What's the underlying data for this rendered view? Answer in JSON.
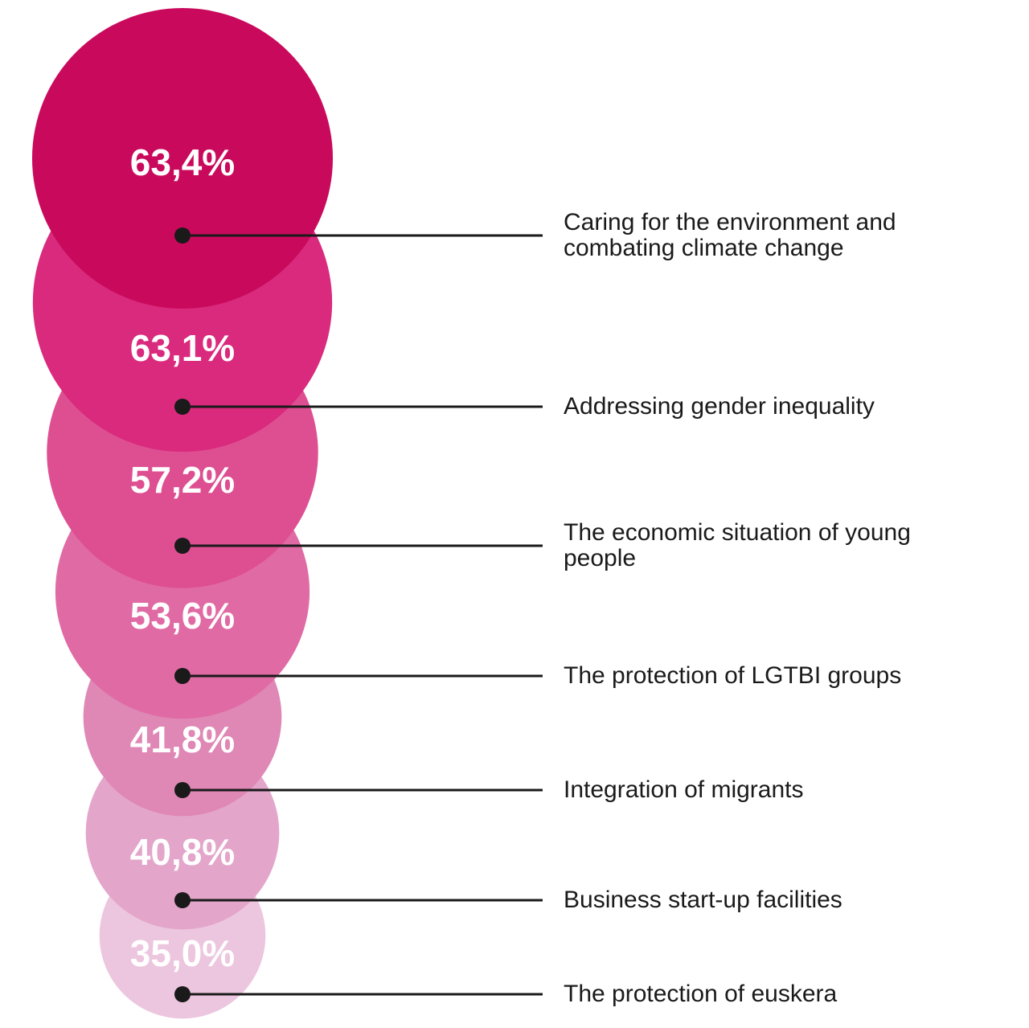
{
  "chart_data": {
    "type": "bubble",
    "categories": [
      "Caring for the environment and combating climate change",
      "Addressing gender inequality",
      "The economic situation of young people",
      "The protection of LGTBI groups",
      "Integration of migrants",
      "Business start-up facilities",
      "The protection of euskera"
    ],
    "values": [
      63.4,
      63.1,
      57.2,
      53.6,
      41.8,
      40.8,
      35.0
    ],
    "value_labels": [
      "63,4%",
      "63,1%",
      "57,2%",
      "53,6%",
      "41,8%",
      "40,8%",
      "35,0%"
    ],
    "colors": [
      "#c90a5c",
      "#d92a7d",
      "#de4f92",
      "#e06ba4",
      "#df87b5",
      "#e3a6ca",
      "#ecc6de"
    ]
  }
}
